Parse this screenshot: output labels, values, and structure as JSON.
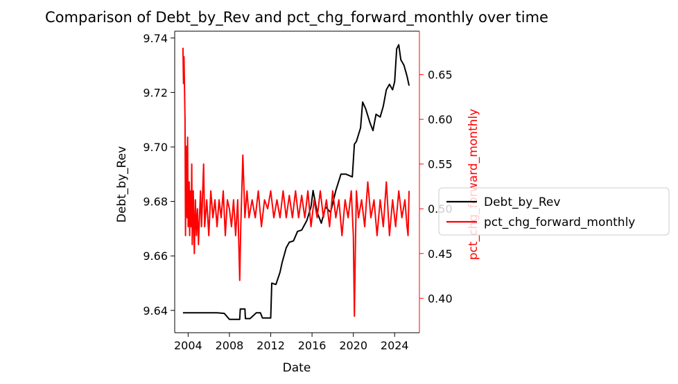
{
  "chart_data": {
    "type": "line",
    "title": "Comparison of Debt_by_Rev and pct_chg_forward_monthly over time",
    "xlabel": "Date",
    "ylabel_left": "Debt_by_Rev",
    "ylabel_right": "pct_chg_forward_monthly",
    "xlim": [
      2002.7,
      2026.4
    ],
    "ylim_left": [
      9.6318,
      9.7425
    ],
    "ylim_right": [
      0.3615,
      0.6985
    ],
    "x_ticks": [
      2004,
      2008,
      2012,
      2016,
      2020,
      2024
    ],
    "y_ticks_left": [
      "9.64",
      "9.66",
      "9.68",
      "9.70",
      "9.72",
      "9.74"
    ],
    "y_ticks_right": [
      "0.40",
      "0.45",
      "0.50",
      "0.55",
      "0.60",
      "0.65"
    ],
    "grid": false,
    "legend": {
      "position": "center-right-outside",
      "entries": [
        "Debt_by_Rev",
        "pct_chg_forward_monthly"
      ]
    },
    "series": [
      {
        "name": "Debt_by_Rev",
        "axis": "left",
        "color": "#000000",
        "x": [
          2003.5,
          2006.8,
          2007.5,
          2008.0,
          2009.0,
          2009.05,
          2009.5,
          2009.55,
          2010.0,
          2010.6,
          2011.0,
          2011.2,
          2012.0,
          2012.1,
          2012.5,
          2012.9,
          2013.1,
          2013.5,
          2013.8,
          2014.2,
          2014.6,
          2015.0,
          2015.5,
          2015.9,
          2016.1,
          2016.5,
          2016.9,
          2017.3,
          2017.8,
          2018.3,
          2018.8,
          2019.3,
          2019.9,
          2020.1,
          2020.3,
          2020.7,
          2020.9,
          2021.2,
          2021.6,
          2021.9,
          2022.2,
          2022.6,
          2022.9,
          2023.2,
          2023.5,
          2023.8,
          2024.0,
          2024.2,
          2024.4,
          2024.6,
          2024.9,
          2025.2,
          2025.4
        ],
        "y": [
          9.6391,
          9.6391,
          9.6389,
          9.6367,
          9.6367,
          9.6405,
          9.6405,
          9.637,
          9.637,
          9.6391,
          9.6391,
          9.6372,
          9.6372,
          9.65,
          9.6495,
          9.654,
          9.6575,
          9.663,
          9.665,
          9.6655,
          9.669,
          9.6695,
          9.673,
          9.678,
          9.684,
          9.676,
          9.672,
          9.678,
          9.676,
          9.684,
          9.69,
          9.69,
          9.689,
          9.701,
          9.702,
          9.707,
          9.7165,
          9.714,
          9.709,
          9.706,
          9.712,
          9.711,
          9.715,
          9.721,
          9.723,
          9.721,
          9.724,
          9.736,
          9.7375,
          9.732,
          9.73,
          9.726,
          9.7225
        ]
      },
      {
        "name": "pct_chg_forward_monthly",
        "axis": "right",
        "color": "#ff0000",
        "x": [
          2003.5,
          2003.55,
          2003.6,
          2003.7,
          2003.75,
          2003.8,
          2003.85,
          2003.9,
          2003.95,
          2004.0,
          2004.1,
          2004.15,
          2004.2,
          2004.3,
          2004.35,
          2004.4,
          2004.5,
          2004.6,
          2004.7,
          2004.8,
          2004.9,
          2005.0,
          2005.2,
          2005.3,
          2005.5,
          2005.6,
          2005.8,
          2006.0,
          2006.2,
          2006.4,
          2006.6,
          2006.8,
          2007.0,
          2007.2,
          2007.4,
          2007.6,
          2007.8,
          2008.0,
          2008.2,
          2008.4,
          2008.6,
          2008.8,
          2009.0,
          2009.1,
          2009.3,
          2009.5,
          2009.7,
          2009.9,
          2010.2,
          2010.5,
          2010.8,
          2011.1,
          2011.4,
          2011.7,
          2012.0,
          2012.3,
          2012.6,
          2012.9,
          2013.2,
          2013.5,
          2013.8,
          2014.1,
          2014.4,
          2014.7,
          2015.0,
          2015.3,
          2015.6,
          2015.9,
          2016.2,
          2016.5,
          2016.8,
          2017.1,
          2017.4,
          2017.7,
          2018.0,
          2018.3,
          2018.6,
          2018.9,
          2019.2,
          2019.5,
          2019.8,
          2020.0,
          2020.1,
          2020.2,
          2020.3,
          2020.5,
          2020.8,
          2021.1,
          2021.4,
          2021.7,
          2022.0,
          2022.3,
          2022.6,
          2022.9,
          2023.2,
          2023.5,
          2023.8,
          2024.1,
          2024.4,
          2024.7,
          2025.0,
          2025.2,
          2025.3,
          2025.4
        ],
        "y": [
          0.68,
          0.64,
          0.67,
          0.6,
          0.47,
          0.57,
          0.52,
          0.49,
          0.58,
          0.48,
          0.53,
          0.47,
          0.52,
          0.48,
          0.55,
          0.46,
          0.52,
          0.45,
          0.51,
          0.47,
          0.5,
          0.46,
          0.52,
          0.48,
          0.55,
          0.48,
          0.51,
          0.47,
          0.52,
          0.49,
          0.51,
          0.48,
          0.51,
          0.49,
          0.52,
          0.47,
          0.51,
          0.5,
          0.48,
          0.51,
          0.47,
          0.51,
          0.42,
          0.48,
          0.56,
          0.49,
          0.52,
          0.49,
          0.51,
          0.49,
          0.52,
          0.48,
          0.51,
          0.5,
          0.52,
          0.49,
          0.51,
          0.49,
          0.52,
          0.49,
          0.515,
          0.49,
          0.52,
          0.49,
          0.515,
          0.49,
          0.52,
          0.48,
          0.51,
          0.49,
          0.52,
          0.49,
          0.51,
          0.48,
          0.52,
          0.49,
          0.51,
          0.47,
          0.51,
          0.49,
          0.52,
          0.47,
          0.38,
          0.46,
          0.52,
          0.49,
          0.51,
          0.48,
          0.53,
          0.49,
          0.51,
          0.47,
          0.51,
          0.48,
          0.53,
          0.47,
          0.51,
          0.48,
          0.52,
          0.49,
          0.51,
          0.48,
          0.47,
          0.52
        ]
      }
    ]
  }
}
